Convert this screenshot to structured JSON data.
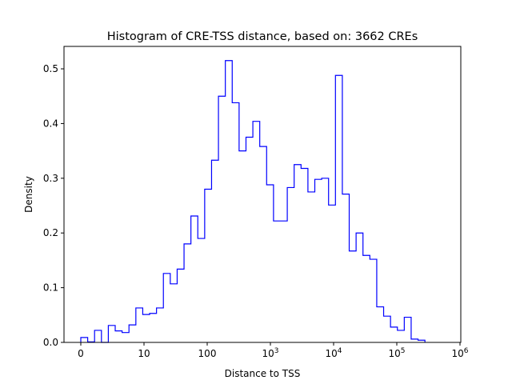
{
  "chart_data": {
    "type": "bar",
    "histtype": "step",
    "title": "Histogram of CRE-TSS distance, based on: 3662 CREs",
    "xlabel": "Distance to TSS",
    "ylabel": "Density",
    "xscale": "symlog (linthresh 10)",
    "xlim_transformed": [
      -0.27,
      6.0
    ],
    "ylim": [
      0,
      0.541
    ],
    "xticks": [
      {
        "t": 0,
        "label": "0"
      },
      {
        "t": 1,
        "label": "10"
      },
      {
        "t": 2,
        "label": "100"
      },
      {
        "t": 3,
        "label": "10",
        "sup": "3"
      },
      {
        "t": 4,
        "label": "10",
        "sup": "4"
      },
      {
        "t": 5,
        "label": "10",
        "sup": "5"
      },
      {
        "t": 6,
        "label": "10",
        "sup": "6"
      }
    ],
    "yticks": [
      0,
      0.1,
      0.2,
      0.3,
      0.4,
      0.5
    ],
    "bin_start_transformed": 0,
    "bin_width_transformed": 0.1089,
    "values": [
      0.009,
      0.001,
      0.022,
      0.0,
      0.031,
      0.021,
      0.018,
      0.032,
      0.063,
      0.051,
      0.053,
      0.063,
      0.126,
      0.107,
      0.134,
      0.18,
      0.231,
      0.19,
      0.28,
      0.333,
      0.45,
      0.515,
      0.438,
      0.35,
      0.375,
      0.404,
      0.358,
      0.288,
      0.222,
      0.222,
      0.283,
      0.325,
      0.318,
      0.275,
      0.298,
      0.3,
      0.251,
      0.488,
      0.271,
      0.167,
      0.2,
      0.159,
      0.152,
      0.065,
      0.048,
      0.028,
      0.022,
      0.046,
      0.006,
      0.004
    ],
    "color": "#0000ff",
    "grid": false
  }
}
